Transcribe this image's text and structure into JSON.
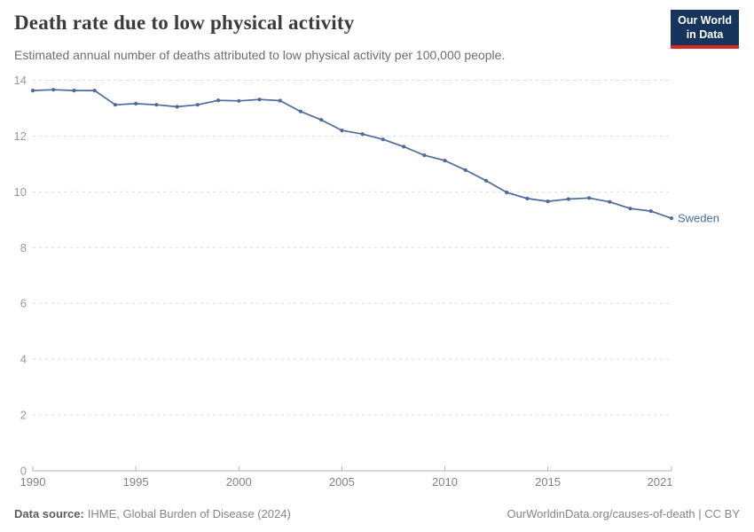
{
  "header": {
    "title": "Death rate due to low physical activity",
    "subtitle": "Estimated annual number of deaths attributed to low physical activity per 100,000 people.",
    "logo": {
      "line1": "Our World",
      "line2": "in Data",
      "bg_color": "#16345c",
      "accent_color": "#d42b20"
    }
  },
  "chart_data": {
    "type": "line",
    "title": "Death rate due to low physical activity",
    "subtitle": "Estimated annual number of deaths attributed to low physical activity per 100,000 people.",
    "xlabel": "",
    "ylabel": "",
    "ylim": [
      0,
      14
    ],
    "yticks": [
      0,
      2,
      4,
      6,
      8,
      10,
      12,
      14
    ],
    "xticks": [
      1990,
      1995,
      2000,
      2005,
      2010,
      2015,
      2021
    ],
    "grid": "horizontal-dashed",
    "legend_position": "end-of-line-label",
    "x": [
      1990,
      1991,
      1992,
      1993,
      1994,
      1995,
      1996,
      1997,
      1998,
      1999,
      2000,
      2001,
      2002,
      2003,
      2004,
      2005,
      2006,
      2007,
      2008,
      2009,
      2010,
      2011,
      2012,
      2013,
      2014,
      2015,
      2016,
      2017,
      2018,
      2019,
      2020,
      2021
    ],
    "series": [
      {
        "name": "Sweden",
        "color": "#4c6a9c",
        "values": [
          13.63,
          13.66,
          13.63,
          13.63,
          13.12,
          13.16,
          13.12,
          13.05,
          13.12,
          13.28,
          13.26,
          13.31,
          13.27,
          12.88,
          12.58,
          12.2,
          12.07,
          11.88,
          11.62,
          11.31,
          11.12,
          10.78,
          10.4,
          9.98,
          9.76,
          9.66,
          9.74,
          9.78,
          9.64,
          9.4,
          9.31,
          9.05
        ]
      }
    ]
  },
  "footer": {
    "source_label": "Data source:",
    "source_value": "IHME, Global Burden of Disease (2024)",
    "credit": "OurWorldinData.org/causes-of-death | CC BY"
  }
}
